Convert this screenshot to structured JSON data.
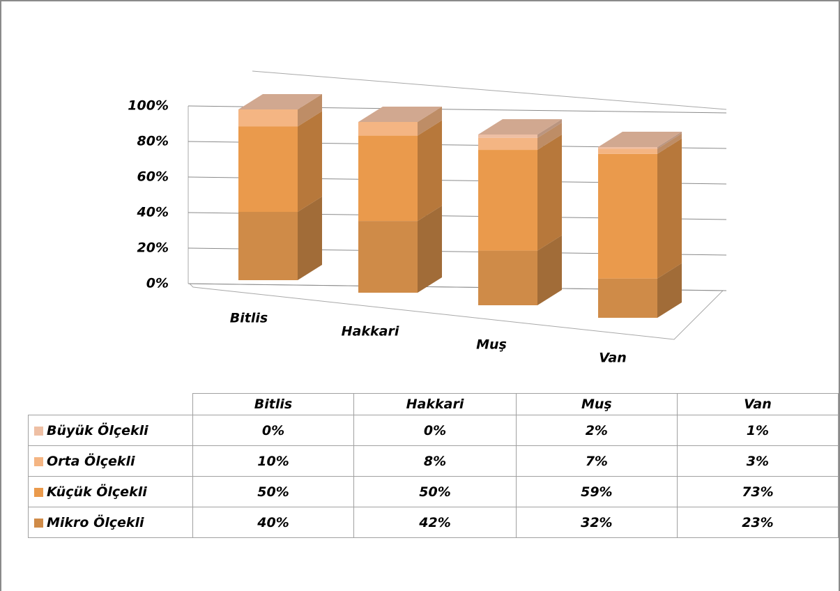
{
  "chart_data": {
    "type": "bar3d_stacked",
    "categories": [
      "Bitlis",
      "Hakkari",
      "Muş",
      "Van"
    ],
    "series": [
      {
        "name": "Büyük Ölçekli",
        "color": "#eebfa4",
        "values": [
          0,
          0,
          2,
          1
        ],
        "value_labels": [
          "0%",
          "0%",
          "2%",
          "1%"
        ]
      },
      {
        "name": "Orta Ölçekli",
        "color": "#f4b583",
        "values": [
          10,
          8,
          7,
          3
        ],
        "value_labels": [
          "10%",
          "8%",
          "7%",
          "3%"
        ]
      },
      {
        "name": "Küçük Ölçekli",
        "color": "#ea9a4c",
        "values": [
          50,
          50,
          59,
          73
        ],
        "value_labels": [
          "50%",
          "50%",
          "59%",
          "73%"
        ]
      },
      {
        "name": "Mikro Ölçekli",
        "color": "#cf8b48",
        "values": [
          40,
          42,
          32,
          23
        ],
        "value_labels": [
          "40%",
          "42%",
          "32%",
          "23%"
        ]
      }
    ],
    "ylim": [
      0,
      100
    ],
    "yticks": [
      {
        "value": 0,
        "label": "0%"
      },
      {
        "value": 20,
        "label": "20%"
      },
      {
        "value": 40,
        "label": "40%"
      },
      {
        "value": 60,
        "label": "60%"
      },
      {
        "value": 80,
        "label": "80%"
      },
      {
        "value": 100,
        "label": "100%"
      }
    ],
    "grid": true
  }
}
